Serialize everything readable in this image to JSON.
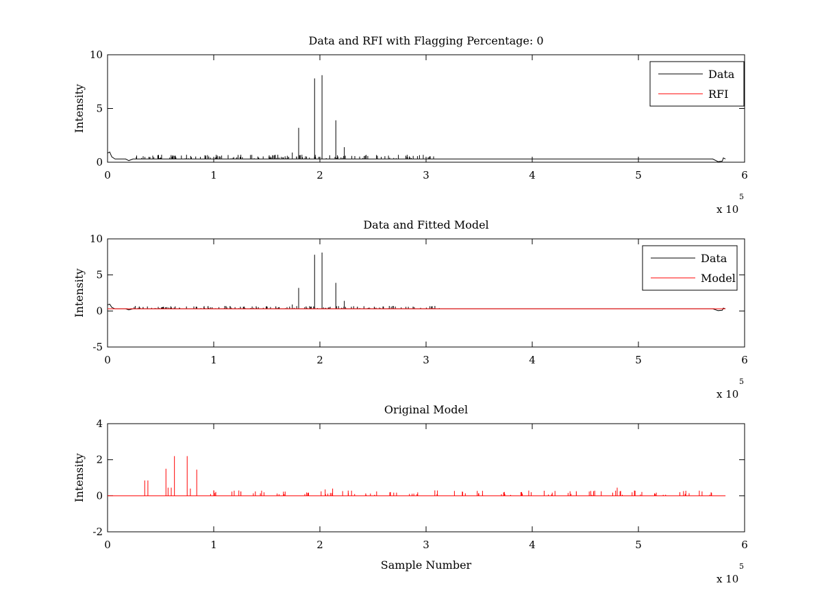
{
  "chart_data": [
    {
      "type": "line",
      "title": "Data and RFI with Flagging Percentage: 0",
      "ylabel": "Intensity",
      "xlabel": "",
      "xlim": [
        0,
        6
      ],
      "ylim": [
        0,
        10
      ],
      "xticks": [
        "0",
        "1",
        "2",
        "3",
        "4",
        "5",
        "6"
      ],
      "yticks": [
        "0",
        "5",
        "10"
      ],
      "x_multiplier_label": "x 10",
      "x_multiplier_exponent": "5",
      "legend_position": "top-right",
      "series": [
        {
          "name": "Data",
          "color": "#000000",
          "baseline": 0.3,
          "spikes": [
            {
              "x": 1.8,
              "y": 3.2
            },
            {
              "x": 1.95,
              "y": 7.8
            },
            {
              "x": 2.02,
              "y": 8.1
            },
            {
              "x": 2.15,
              "y": 3.9
            },
            {
              "x": 2.23,
              "y": 1.4
            },
            {
              "x": 1.74,
              "y": 0.9
            }
          ]
        },
        {
          "name": "RFI",
          "color": "#ff0000",
          "values": []
        }
      ]
    },
    {
      "type": "line",
      "title": "Data and Fitted Model",
      "ylabel": "Intensity",
      "xlabel": "",
      "xlim": [
        0,
        6
      ],
      "ylim": [
        -5,
        10
      ],
      "xticks": [
        "0",
        "1",
        "2",
        "3",
        "4",
        "5",
        "6"
      ],
      "yticks": [
        "-5",
        "0",
        "5",
        "10"
      ],
      "x_multiplier_label": "x 10",
      "x_multiplier_exponent": "5",
      "legend_position": "top-right",
      "series": [
        {
          "name": "Data",
          "color": "#000000",
          "baseline": 0.3,
          "spikes": [
            {
              "x": 1.8,
              "y": 3.2
            },
            {
              "x": 1.95,
              "y": 7.8
            },
            {
              "x": 2.02,
              "y": 8.1
            },
            {
              "x": 2.15,
              "y": 3.9
            },
            {
              "x": 2.23,
              "y": 1.4
            },
            {
              "x": 1.74,
              "y": 0.9
            }
          ]
        },
        {
          "name": "Model",
          "color": "#ff0000",
          "baseline": 0.3
        }
      ]
    },
    {
      "type": "line",
      "title": "Original Model",
      "ylabel": "Intensity",
      "xlabel": "Sample Number",
      "xlim": [
        0,
        6
      ],
      "ylim": [
        -2,
        4
      ],
      "xticks": [
        "0",
        "1",
        "2",
        "3",
        "4",
        "5",
        "6"
      ],
      "yticks": [
        "-2",
        "0",
        "2",
        "4"
      ],
      "x_multiplier_label": "x 10",
      "x_multiplier_exponent": "5",
      "series": [
        {
          "color": "#ff0000",
          "baseline": 0.0,
          "spikes": [
            {
              "x": 0.35,
              "y": 0.85
            },
            {
              "x": 0.38,
              "y": 0.85
            },
            {
              "x": 0.55,
              "y": 1.5
            },
            {
              "x": 0.57,
              "y": 0.45
            },
            {
              "x": 0.6,
              "y": 0.45
            },
            {
              "x": 0.63,
              "y": 2.2
            },
            {
              "x": 0.75,
              "y": 2.2
            },
            {
              "x": 0.78,
              "y": 0.4
            },
            {
              "x": 0.84,
              "y": 1.45
            },
            {
              "x": 1.0,
              "y": 0.3
            },
            {
              "x": 2.05,
              "y": 0.35
            },
            {
              "x": 2.12,
              "y": 0.4
            },
            {
              "x": 4.8,
              "y": 0.45
            },
            {
              "x": 4.65,
              "y": 0.25
            }
          ]
        }
      ]
    }
  ]
}
